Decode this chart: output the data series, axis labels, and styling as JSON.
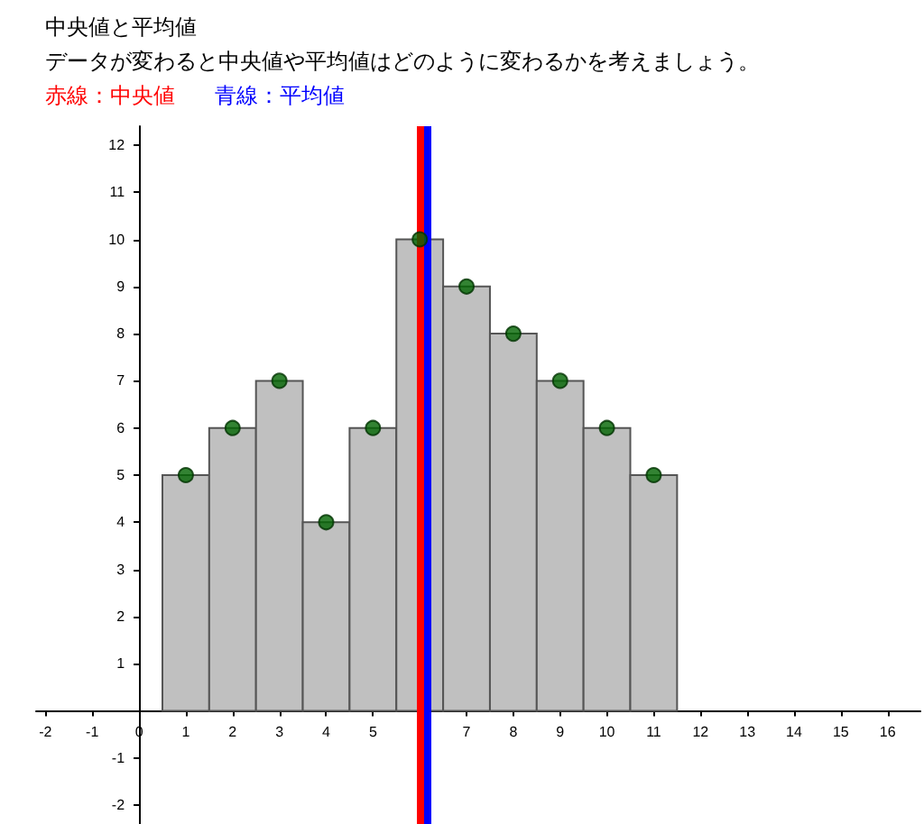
{
  "chart_data": {
    "type": "histogram",
    "title": "中央値と平均値",
    "subtitle": "データが変わると中央値や平均値はどのように変わるかを考えましょう。",
    "bins": [
      0.5,
      1.5,
      2.5,
      3.5,
      4.5,
      5.5,
      6.5,
      7.5,
      8.5,
      9.5,
      10.5,
      11.5
    ],
    "values": [
      5,
      6,
      7,
      4,
      6,
      10,
      9,
      8,
      7,
      6,
      5
    ],
    "color": "#c0c0c0",
    "series": [
      {
        "type": "scatter",
        "x": [
          1,
          2,
          3,
          4,
          5,
          6,
          7,
          8,
          9,
          10,
          11
        ],
        "values": [
          5,
          6,
          7,
          4,
          6,
          10,
          9,
          8,
          7,
          6,
          5
        ],
        "color": "#006400"
      }
    ],
    "marker": "circle",
    "xlim": [
      -2.2,
      16.7
    ],
    "ylim": [
      -2.4,
      12.4
    ],
    "xticks": [
      -2,
      -1,
      0,
      1,
      2,
      3,
      4,
      5,
      {
        "value": 6,
        "label": null
      },
      7,
      8,
      9,
      10,
      11,
      12,
      13,
      14,
      15,
      16
    ],
    "yticks": [
      -2,
      -1,
      1,
      2,
      3,
      4,
      5,
      6,
      7,
      8,
      9,
      10,
      11,
      12
    ],
    "ref_lines": [
      {
        "axis": "x",
        "value": 6,
        "label": "赤線：中央値",
        "color": "#ff0000"
      },
      {
        "axis": "x",
        "value": 6.15,
        "label": "青線：平均値",
        "color": "#0000ff"
      }
    ],
    "grid": false
  }
}
